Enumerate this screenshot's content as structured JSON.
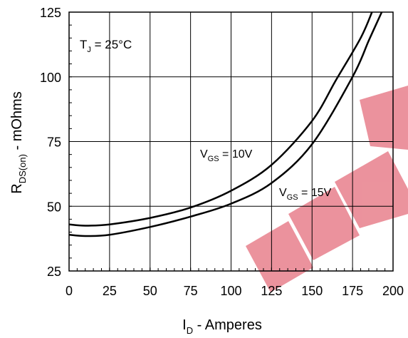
{
  "chart_data": {
    "type": "line",
    "xlabel": {
      "main": "I",
      "sub": "D",
      "rest": " - Amperes"
    },
    "ylabel": {
      "main": "R",
      "sub": "DS(on)",
      "rest": " - mOhms"
    },
    "xlim": [
      0,
      200
    ],
    "ylim": [
      25,
      125
    ],
    "x_ticks": [
      0,
      25,
      50,
      75,
      100,
      125,
      150,
      175,
      200
    ],
    "y_ticks": [
      25,
      50,
      75,
      100,
      125
    ],
    "grid": true,
    "annotations": {
      "temp": {
        "main": "T",
        "sub": "J",
        "rest": " = 25°C"
      },
      "series1": {
        "main": "V",
        "sub": "GS",
        "rest": " = 10V"
      },
      "series2": {
        "main": "V",
        "sub": "GS",
        "rest": " = 15V"
      }
    },
    "watermark": "EEPW",
    "series": [
      {
        "color": "#000000",
        "x": [
          0,
          10,
          25,
          50,
          75,
          100,
          125,
          150,
          165,
          180,
          187
        ],
        "y": [
          43,
          42.5,
          43,
          45.5,
          49.5,
          56,
          66,
          83,
          99,
          115,
          125
        ]
      },
      {
        "color": "#000000",
        "x": [
          0,
          10,
          25,
          50,
          75,
          100,
          125,
          150,
          175,
          185,
          193
        ],
        "y": [
          39,
          38.5,
          39,
          42,
          46,
          51,
          59,
          74,
          100,
          114,
          125
        ]
      }
    ]
  }
}
